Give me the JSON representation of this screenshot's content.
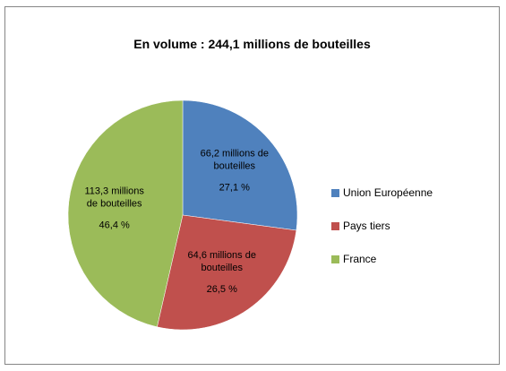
{
  "chart_data": {
    "type": "pie",
    "title": "En volume : 244,1 millions de bouteilles",
    "slices": [
      {
        "name": "Union Européenne",
        "value": 66.2,
        "value_label": "66,2 millions de bouteilles",
        "percent": 27.1,
        "percent_label": "27,1 %",
        "color": "#4f81bd"
      },
      {
        "name": "Pays tiers",
        "value": 64.6,
        "value_label": "64,6 millions de bouteilles",
        "percent": 26.5,
        "percent_label": "26,5 %",
        "color": "#c0504d"
      },
      {
        "name": "France",
        "value": 113.3,
        "value_label": "113,3 millions de bouteilles",
        "percent": 46.4,
        "percent_label": "46,4 %",
        "color": "#9bbb59"
      }
    ],
    "legend_position": "right"
  }
}
